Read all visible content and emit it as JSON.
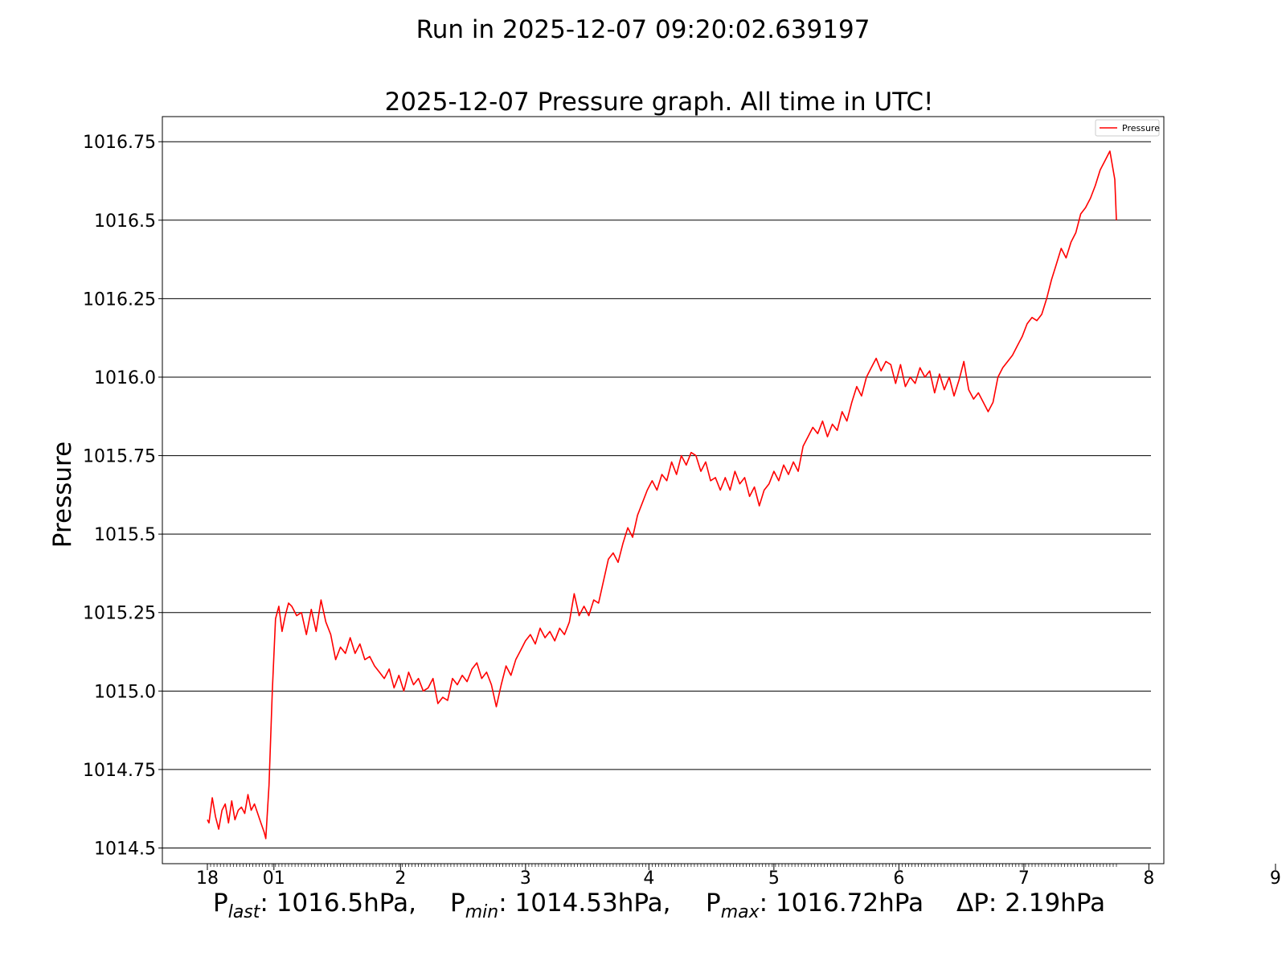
{
  "suptitle": "Run in 2025-12-07 09:20:02.639197",
  "chart_data": {
    "type": "line",
    "title": "2025-12-07 Pressure graph. All time in UTC!",
    "ylabel": "Pressure",
    "xlabel": "",
    "legend": {
      "entry": "Pressure",
      "placement": "top-right"
    },
    "grid": "horizontal",
    "ylim": [
      1014.45,
      1016.83
    ],
    "x_ticks": [
      "18",
      "01",
      "2",
      "3",
      "4",
      "5",
      "6",
      "7",
      "8",
      "9"
    ],
    "y_ticks": [
      "1014.5",
      "1014.75",
      "1015.0",
      "1015.25",
      "1015.5",
      "1015.75",
      "1016.0",
      "1016.25",
      "1016.5",
      "1016.75"
    ],
    "series": [
      {
        "name": "Pressure",
        "color": "#ff0000",
        "points": [
          [
            "00:00",
            1014.59
          ],
          [
            "00:01",
            1014.58
          ],
          [
            "00:03",
            1014.66
          ],
          [
            "00:05",
            1014.6
          ],
          [
            "00:07",
            1014.56
          ],
          [
            "00:09",
            1014.62
          ],
          [
            "00:11",
            1014.64
          ],
          [
            "00:13",
            1014.58
          ],
          [
            "00:15",
            1014.65
          ],
          [
            "00:17",
            1014.59
          ],
          [
            "00:19",
            1014.62
          ],
          [
            "00:21",
            1014.63
          ],
          [
            "00:23",
            1014.61
          ],
          [
            "00:25",
            1014.67
          ],
          [
            "00:27",
            1014.62
          ],
          [
            "00:29",
            1014.64
          ],
          [
            "00:31",
            1014.61
          ],
          [
            "00:33",
            1014.58
          ],
          [
            "00:35",
            1014.55
          ],
          [
            "00:36",
            1014.53
          ],
          [
            "00:38",
            1014.7
          ],
          [
            "00:40",
            1015.0
          ],
          [
            "00:42",
            1015.23
          ],
          [
            "00:44",
            1015.27
          ],
          [
            "00:46",
            1015.19
          ],
          [
            "00:48",
            1015.24
          ],
          [
            "00:50",
            1015.28
          ],
          [
            "00:52",
            1015.27
          ],
          [
            "00:55",
            1015.24
          ],
          [
            "00:58",
            1015.25
          ],
          [
            "01:01",
            1015.18
          ],
          [
            "01:04",
            1015.26
          ],
          [
            "01:07",
            1015.19
          ],
          [
            "01:10",
            1015.29
          ],
          [
            "01:13",
            1015.22
          ],
          [
            "01:16",
            1015.18
          ],
          [
            "01:19",
            1015.1
          ],
          [
            "01:22",
            1015.14
          ],
          [
            "01:25",
            1015.12
          ],
          [
            "01:28",
            1015.17
          ],
          [
            "01:31",
            1015.12
          ],
          [
            "01:34",
            1015.15
          ],
          [
            "01:37",
            1015.1
          ],
          [
            "01:40",
            1015.11
          ],
          [
            "01:43",
            1015.08
          ],
          [
            "01:46",
            1015.06
          ],
          [
            "01:49",
            1015.04
          ],
          [
            "01:52",
            1015.07
          ],
          [
            "01:55",
            1015.01
          ],
          [
            "01:58",
            1015.05
          ],
          [
            "02:01",
            1015.0
          ],
          [
            "02:04",
            1015.06
          ],
          [
            "02:07",
            1015.02
          ],
          [
            "02:10",
            1015.04
          ],
          [
            "02:13",
            1015.0
          ],
          [
            "02:16",
            1015.01
          ],
          [
            "02:19",
            1015.04
          ],
          [
            "02:22",
            1014.96
          ],
          [
            "02:25",
            1014.98
          ],
          [
            "02:28",
            1014.97
          ],
          [
            "02:31",
            1015.04
          ],
          [
            "02:34",
            1015.02
          ],
          [
            "02:37",
            1015.05
          ],
          [
            "02:40",
            1015.03
          ],
          [
            "02:43",
            1015.07
          ],
          [
            "02:46",
            1015.09
          ],
          [
            "02:49",
            1015.04
          ],
          [
            "02:52",
            1015.06
          ],
          [
            "02:55",
            1015.02
          ],
          [
            "02:58",
            1014.95
          ],
          [
            "03:01",
            1015.02
          ],
          [
            "03:04",
            1015.08
          ],
          [
            "03:07",
            1015.05
          ],
          [
            "03:10",
            1015.1
          ],
          [
            "03:13",
            1015.13
          ],
          [
            "03:16",
            1015.16
          ],
          [
            "03:19",
            1015.18
          ],
          [
            "03:22",
            1015.15
          ],
          [
            "03:25",
            1015.2
          ],
          [
            "03:28",
            1015.17
          ],
          [
            "03:31",
            1015.19
          ],
          [
            "03:34",
            1015.16
          ],
          [
            "03:37",
            1015.2
          ],
          [
            "03:40",
            1015.18
          ],
          [
            "03:43",
            1015.22
          ],
          [
            "03:46",
            1015.31
          ],
          [
            "03:49",
            1015.24
          ],
          [
            "03:52",
            1015.27
          ],
          [
            "03:55",
            1015.24
          ],
          [
            "03:58",
            1015.29
          ],
          [
            "04:01",
            1015.28
          ],
          [
            "04:04",
            1015.35
          ],
          [
            "04:07",
            1015.42
          ],
          [
            "04:10",
            1015.44
          ],
          [
            "04:13",
            1015.41
          ],
          [
            "04:16",
            1015.47
          ],
          [
            "04:19",
            1015.52
          ],
          [
            "04:22",
            1015.49
          ],
          [
            "04:25",
            1015.56
          ],
          [
            "04:28",
            1015.6
          ],
          [
            "04:31",
            1015.64
          ],
          [
            "04:34",
            1015.67
          ],
          [
            "04:37",
            1015.64
          ],
          [
            "04:40",
            1015.69
          ],
          [
            "04:43",
            1015.67
          ],
          [
            "04:46",
            1015.73
          ],
          [
            "04:49",
            1015.69
          ],
          [
            "04:52",
            1015.75
          ],
          [
            "04:55",
            1015.72
          ],
          [
            "04:58",
            1015.76
          ],
          [
            "05:01",
            1015.75
          ],
          [
            "05:04",
            1015.7
          ],
          [
            "05:07",
            1015.73
          ],
          [
            "05:10",
            1015.67
          ],
          [
            "05:13",
            1015.68
          ],
          [
            "05:16",
            1015.64
          ],
          [
            "05:19",
            1015.68
          ],
          [
            "05:22",
            1015.64
          ],
          [
            "05:25",
            1015.7
          ],
          [
            "05:28",
            1015.66
          ],
          [
            "05:31",
            1015.68
          ],
          [
            "05:34",
            1015.62
          ],
          [
            "05:37",
            1015.65
          ],
          [
            "05:40",
            1015.59
          ],
          [
            "05:43",
            1015.64
          ],
          [
            "05:46",
            1015.66
          ],
          [
            "05:49",
            1015.7
          ],
          [
            "05:52",
            1015.67
          ],
          [
            "05:55",
            1015.72
          ],
          [
            "05:58",
            1015.69
          ],
          [
            "06:01",
            1015.73
          ],
          [
            "06:04",
            1015.7
          ],
          [
            "06:07",
            1015.78
          ],
          [
            "06:10",
            1015.81
          ],
          [
            "06:13",
            1015.84
          ],
          [
            "06:16",
            1015.82
          ],
          [
            "06:19",
            1015.86
          ],
          [
            "06:22",
            1015.81
          ],
          [
            "06:25",
            1015.85
          ],
          [
            "06:28",
            1015.83
          ],
          [
            "06:31",
            1015.89
          ],
          [
            "06:34",
            1015.86
          ],
          [
            "06:37",
            1015.92
          ],
          [
            "06:40",
            1015.97
          ],
          [
            "06:43",
            1015.94
          ],
          [
            "06:46",
            1016.0
          ],
          [
            "06:49",
            1016.03
          ],
          [
            "06:52",
            1016.06
          ],
          [
            "06:55",
            1016.02
          ],
          [
            "06:58",
            1016.05
          ],
          [
            "07:01",
            1016.04
          ],
          [
            "07:04",
            1015.98
          ],
          [
            "07:07",
            1016.04
          ],
          [
            "07:10",
            1015.97
          ],
          [
            "07:13",
            1016.0
          ],
          [
            "07:16",
            1015.98
          ],
          [
            "07:19",
            1016.03
          ],
          [
            "07:22",
            1016.0
          ],
          [
            "07:25",
            1016.02
          ],
          [
            "07:28",
            1015.95
          ],
          [
            "07:31",
            1016.01
          ],
          [
            "07:34",
            1015.96
          ],
          [
            "07:37",
            1016.0
          ],
          [
            "07:40",
            1015.94
          ],
          [
            "07:43",
            1015.99
          ],
          [
            "07:46",
            1016.05
          ],
          [
            "07:49",
            1015.96
          ],
          [
            "07:52",
            1015.93
          ],
          [
            "07:55",
            1015.95
          ],
          [
            "07:58",
            1015.92
          ],
          [
            "08:01",
            1015.89
          ],
          [
            "08:04",
            1015.92
          ],
          [
            "08:07",
            1016.0
          ],
          [
            "08:10",
            1016.03
          ],
          [
            "08:13",
            1016.05
          ],
          [
            "08:16",
            1016.07
          ],
          [
            "08:19",
            1016.1
          ],
          [
            "08:22",
            1016.13
          ],
          [
            "08:25",
            1016.17
          ],
          [
            "08:28",
            1016.19
          ],
          [
            "08:31",
            1016.18
          ],
          [
            "08:34",
            1016.2
          ],
          [
            "08:37",
            1016.25
          ],
          [
            "08:40",
            1016.31
          ],
          [
            "08:43",
            1016.36
          ],
          [
            "08:46",
            1016.41
          ],
          [
            "08:49",
            1016.38
          ],
          [
            "08:52",
            1016.43
          ],
          [
            "08:55",
            1016.46
          ],
          [
            "08:58",
            1016.52
          ],
          [
            "09:01",
            1016.54
          ],
          [
            "09:04",
            1016.57
          ],
          [
            "09:07",
            1016.61
          ],
          [
            "09:10",
            1016.66
          ],
          [
            "09:13",
            1016.69
          ],
          [
            "09:16",
            1016.72
          ],
          [
            "09:19",
            1016.63
          ],
          [
            "09:20",
            1016.5
          ]
        ]
      }
    ]
  },
  "footer": {
    "p_sym": "P",
    "last_sub": "last",
    "last_value": ": 1016.5hPa,",
    "min_sub": "min",
    "min_value": ": 1014.53hPa,",
    "max_sub": "max",
    "max_value": ": 1016.72hPa",
    "delta": "ΔP: 2.19hPa"
  }
}
